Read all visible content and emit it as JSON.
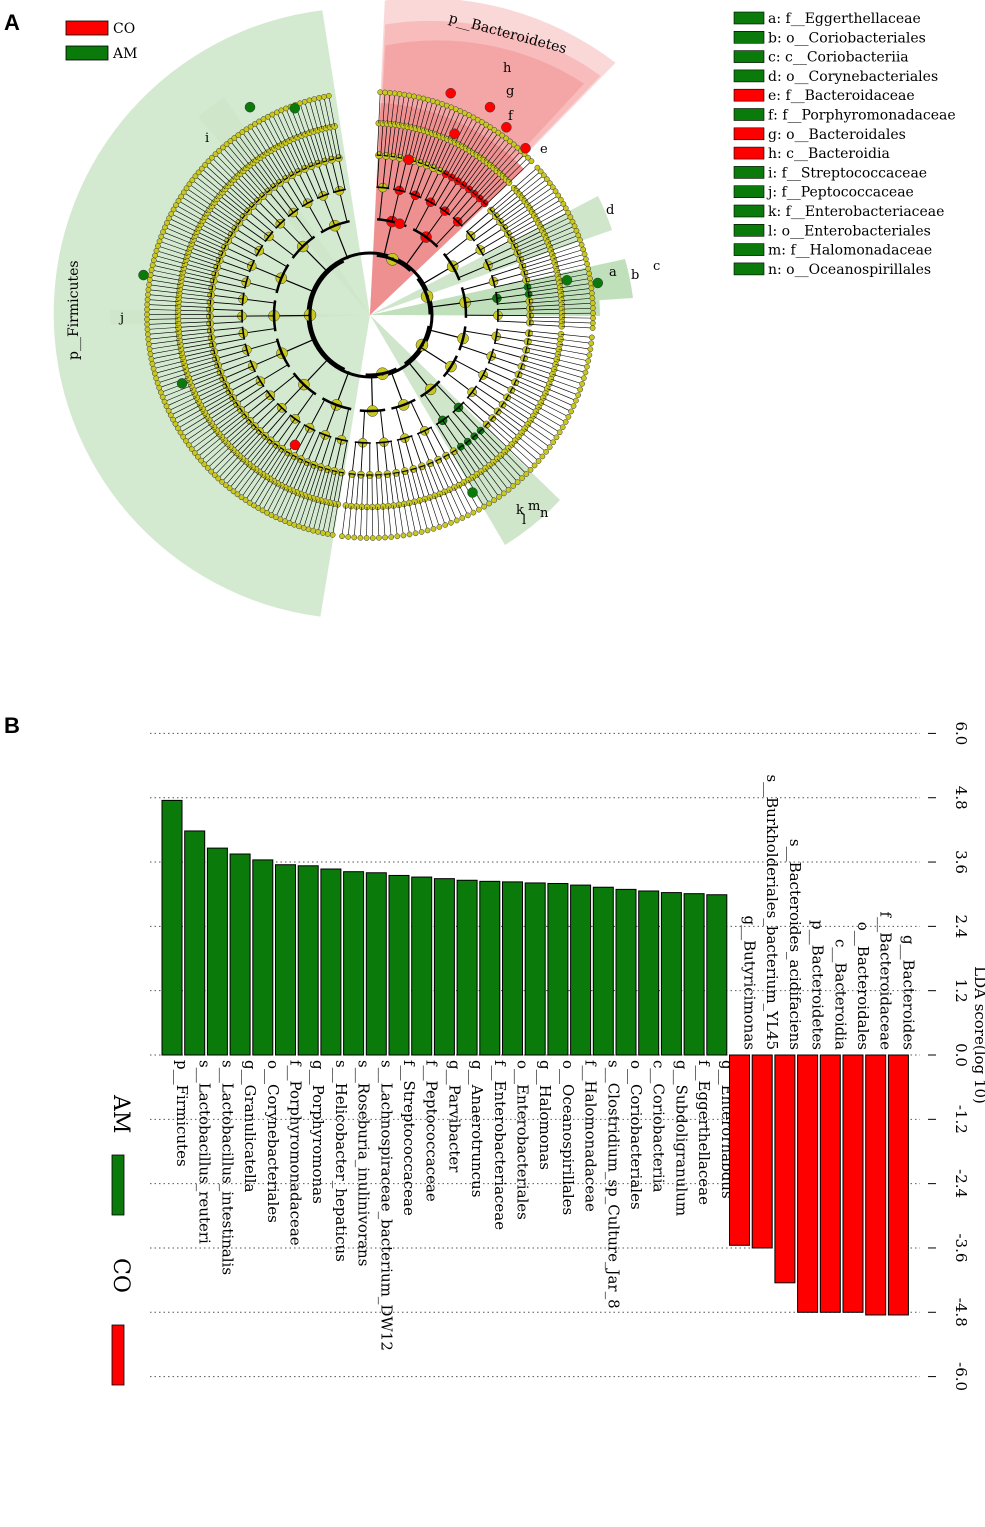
{
  "panels": {
    "a": "A",
    "b": "B"
  },
  "colors": {
    "CO": "#ff0000",
    "AM": "#0a7a0a",
    "node": "#c8c820",
    "green_shade": "#d4ead0",
    "red_shade": "#f7c4c4"
  },
  "cladogram": {
    "legend": [
      {
        "label": "CO",
        "color": "#ff0000"
      },
      {
        "label": "AM",
        "color": "#0a7a0a"
      }
    ],
    "phylum_labels": {
      "firmicutes": "p__Firmicutes",
      "bacteroidetes": "p__Bacteroidetes"
    },
    "clade_letters": [
      "h",
      "g",
      "f",
      "e",
      "d",
      "c",
      "b",
      "a",
      "n",
      "m",
      "k",
      "l",
      "i",
      "j"
    ],
    "taxa_key": [
      {
        "letter_label": "a: f__Eggerthellaceae",
        "group": "AM",
        "color": "#0a7a0a"
      },
      {
        "letter_label": "b: o__Coriobacteriales",
        "group": "AM",
        "color": "#0a7a0a"
      },
      {
        "letter_label": "c: c__Coriobacteriia",
        "group": "AM",
        "color": "#0a7a0a"
      },
      {
        "letter_label": "d: o__Corynebacteriales",
        "group": "AM",
        "color": "#0a7a0a"
      },
      {
        "letter_label": "e: f__Bacteroidaceae",
        "group": "CO",
        "color": "#ff0000"
      },
      {
        "letter_label": "f: f__Porphyromonadaceae",
        "group": "AM",
        "color": "#0a7a0a"
      },
      {
        "letter_label": "g: o__Bacteroidales",
        "group": "CO",
        "color": "#ff0000"
      },
      {
        "letter_label": "h: c__Bacteroidia",
        "group": "CO",
        "color": "#ff0000"
      },
      {
        "letter_label": "i: f__Streptococcaceae",
        "group": "AM",
        "color": "#0a7a0a"
      },
      {
        "letter_label": "j: f__Peptococcaceae",
        "group": "AM",
        "color": "#0a7a0a"
      },
      {
        "letter_label": "k: f__Enterobacteriaceae",
        "group": "AM",
        "color": "#0a7a0a"
      },
      {
        "letter_label": "l: o__Enterobacteriales",
        "group": "AM",
        "color": "#0a7a0a"
      },
      {
        "letter_label": "m: f__Halomonadaceae",
        "group": "AM",
        "color": "#0a7a0a"
      },
      {
        "letter_label": "n: o__Oceanospirillales",
        "group": "AM",
        "color": "#0a7a0a"
      }
    ]
  },
  "chart_data": {
    "type": "bar",
    "orientation": "rotated",
    "title": "",
    "xlabel": "LDA score(log 10)",
    "ylabel": "",
    "xlim": [
      -6.0,
      6.0
    ],
    "ticks": [
      6.0,
      4.8,
      3.6,
      2.4,
      1.2,
      0.0,
      -1.2,
      -2.4,
      -3.6,
      -4.8,
      -6.0
    ],
    "tick_labels": [
      "6.0",
      "4.8",
      "3.6",
      "2.4",
      "1.2",
      "0.0",
      "-1.2",
      "-2.4",
      "-3.6",
      "-4.8",
      "-6.0"
    ],
    "legend": [
      {
        "label": "CO",
        "color": "#ff0000"
      },
      {
        "label": "AM",
        "color": "#0a7a0a"
      }
    ],
    "categories": [
      "p__Firmicutes",
      "s__Lactobacillus_reuteri",
      "s__Lactobacillus_intestinalis",
      "g__Granulicatella",
      "o__Corynebacteriales",
      "f__Porphyromonadaceae",
      "g__Porphyromonas",
      "s__Helicobacter_hepaticus",
      "s__Roseburia_inulinivorans",
      "s__Lachnospiraceae_bacterium_DW12",
      "f__Streptococcaceae",
      "f__Peptococcaceae",
      "g__Parvibacter",
      "g__Anaerotruncus",
      "f__Enterobacteriaceae",
      "o__Enterobacteriales",
      "g__Halomonas",
      "o__Oceanospirillales",
      "f__Halomonadaceae",
      "s__Clostridium_sp_Culture_Jar_8",
      "o__Coriobacteriales",
      "c__Coriobacteriia",
      "g__Subdoligranulum",
      "f__Eggerthellaceae",
      "g__Enterorhabdus",
      "g__Butyricimonas",
      "s__Burkholderiales_bacterium_YL45",
      "s__Bacteroides_acidifaciens",
      "p__Bacteroidetes",
      "c__Bacteroidia",
      "o__Bacteroidales",
      "f__Bacteroidaceae",
      "g__Bacteroides"
    ],
    "values": [
      4.75,
      4.18,
      3.86,
      3.75,
      3.64,
      3.55,
      3.53,
      3.47,
      3.42,
      3.4,
      3.35,
      3.32,
      3.29,
      3.26,
      3.24,
      3.23,
      3.21,
      3.2,
      3.17,
      3.13,
      3.09,
      3.06,
      3.03,
      3.01,
      2.99,
      -3.55,
      -3.6,
      -4.25,
      -4.8,
      -4.8,
      -4.8,
      -4.85,
      -4.85
    ],
    "groups": [
      "AM",
      "AM",
      "AM",
      "AM",
      "AM",
      "AM",
      "AM",
      "AM",
      "AM",
      "AM",
      "AM",
      "AM",
      "AM",
      "AM",
      "AM",
      "AM",
      "AM",
      "AM",
      "AM",
      "AM",
      "AM",
      "AM",
      "AM",
      "AM",
      "AM",
      "CO",
      "CO",
      "CO",
      "CO",
      "CO",
      "CO",
      "CO",
      "CO"
    ]
  }
}
